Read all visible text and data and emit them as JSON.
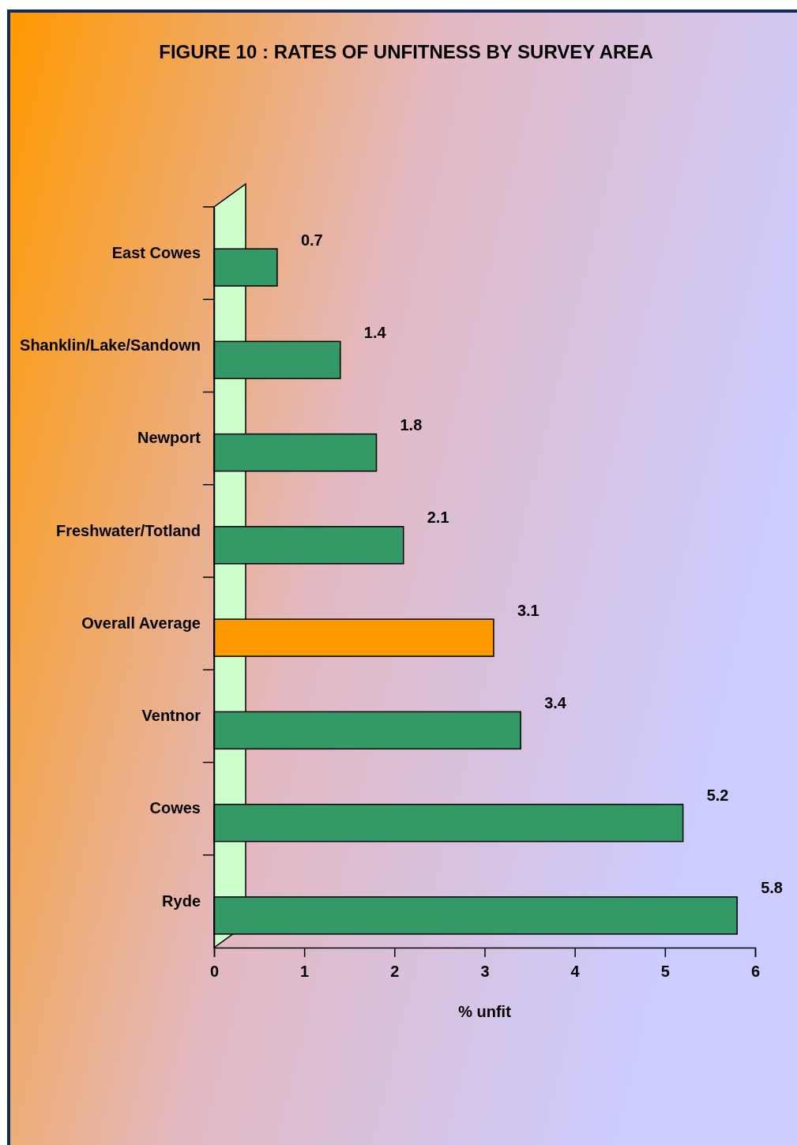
{
  "chart_data": {
    "type": "bar",
    "orientation": "horizontal",
    "title": "FIGURE 10 : RATES OF UNFITNESS BY SURVEY AREA",
    "xlabel": "% unfit",
    "categories": [
      "East Cowes",
      "Shanklin/Lake/Sandown",
      "Newport",
      "Freshwater/Totland",
      "Overall Average",
      "Ventnor",
      "Cowes",
      "Ryde"
    ],
    "values": [
      0.7,
      1.4,
      1.8,
      2.1,
      3.1,
      3.4,
      5.2,
      5.8
    ],
    "colors": [
      "#339966",
      "#339966",
      "#339966",
      "#339966",
      "#ff9900",
      "#339966",
      "#339966",
      "#339966"
    ],
    "xlim": [
      0,
      6
    ],
    "xticks": [
      0,
      1,
      2,
      3,
      4,
      5,
      6
    ],
    "data_labels": true
  }
}
